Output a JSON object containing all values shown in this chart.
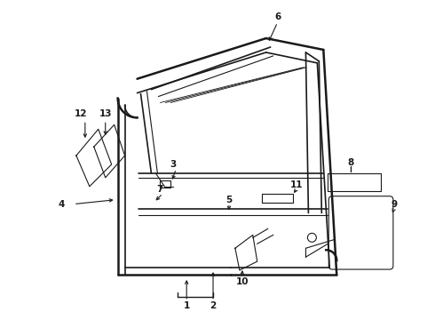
{
  "background_color": "#ffffff",
  "line_color": "#1a1a1a",
  "fig_width": 4.9,
  "fig_height": 3.6,
  "dpi": 100,
  "label_fontsize": 7.5,
  "label_fontweight": "bold"
}
